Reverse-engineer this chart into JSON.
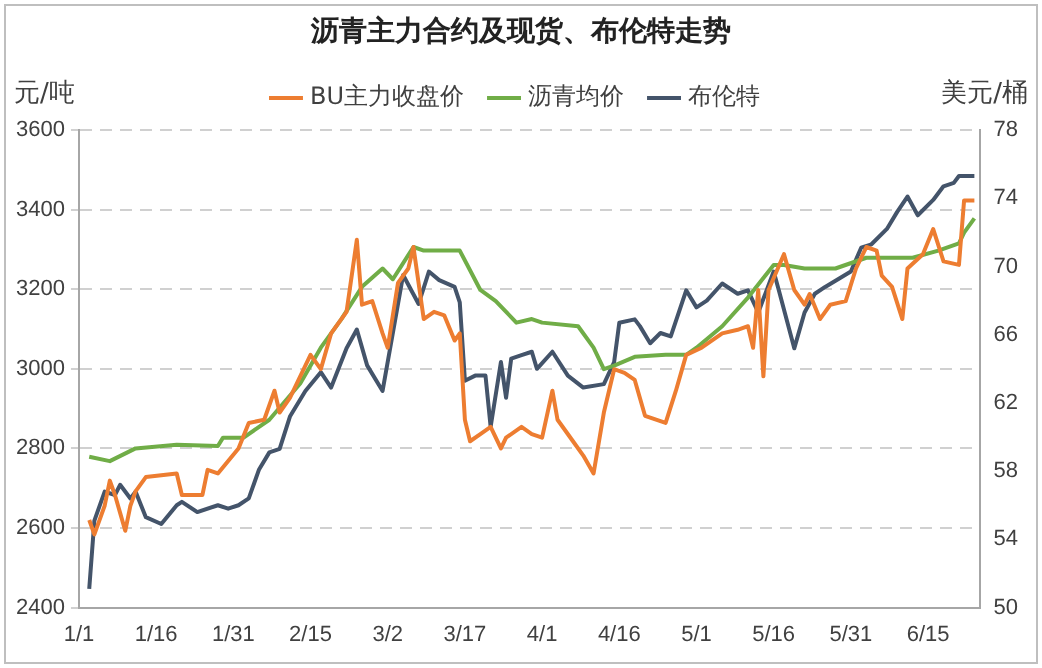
{
  "chart_data": {
    "type": "line",
    "title": "沥青主力合约及现货、布伦特走势",
    "ylabel": "元/吨",
    "y2label": "美元/桶",
    "xlim": [
      "--01-01",
      "--06-25"
    ],
    "xticks": [
      {
        "value": "--01-01",
        "label": "1/1"
      },
      {
        "value": "--01-16",
        "label": "1/16"
      },
      {
        "value": "--01-31",
        "label": "1/31"
      },
      {
        "value": "--02-15",
        "label": "2/15"
      },
      {
        "value": "--03-02",
        "label": "3/2"
      },
      {
        "value": "--03-17",
        "label": "3/17"
      },
      {
        "value": "--04-01",
        "label": "4/1"
      },
      {
        "value": "--04-16",
        "label": "4/16"
      },
      {
        "value": "--05-01",
        "label": "5/1"
      },
      {
        "value": "--05-16",
        "label": "5/16"
      },
      {
        "value": "--05-31",
        "label": "5/31"
      },
      {
        "value": "--06-15",
        "label": "6/15"
      }
    ],
    "ylim": [
      2400,
      3600
    ],
    "yticks": [
      2400,
      2600,
      2800,
      3000,
      3200,
      3400,
      3600
    ],
    "y2lim": [
      50,
      78
    ],
    "y2ticks": [
      50,
      54,
      58,
      62,
      66,
      70,
      74,
      78
    ],
    "grid": "y",
    "legend": "top",
    "marker": "none",
    "line_style": "solid",
    "series": [
      {
        "name": "BU主力收盘价",
        "color": "#ed7d31",
        "x": [
          "--01-03",
          "--01-04",
          "--01-06",
          "--01-07",
          "--01-08",
          "--01-09",
          "--01-10",
          "--01-11",
          "--01-12",
          "--01-14",
          "--01-20",
          "--01-21",
          "--01-25",
          "--01-26",
          "--01-28",
          "--02-01",
          "--02-03",
          "--02-06",
          "--02-08",
          "--02-09",
          "--02-11",
          "--02-15",
          "--02-17",
          "--02-19",
          "--02-22",
          "--02-24",
          "--02-25",
          "--02-27",
          "--03-01",
          "--03-02",
          "--03-04",
          "--03-06",
          "--03-07",
          "--03-09",
          "--03-11",
          "--03-13",
          "--03-15",
          "--03-16",
          "--03-17",
          "--03-18",
          "--03-20",
          "--03-22",
          "--03-24",
          "--03-25",
          "--03-28",
          "--03-30",
          "--04-01",
          "--04-03",
          "--04-04",
          "--04-07",
          "--04-09",
          "--04-11",
          "--04-13",
          "--04-15",
          "--04-17",
          "--04-19",
          "--04-21",
          "--04-25",
          "--04-27",
          "--04-29",
          "--05-02",
          "--05-06",
          "--05-09",
          "--05-11",
          "--05-12",
          "--05-13",
          "--05-14",
          "--05-15",
          "--05-18",
          "--05-20",
          "--05-22",
          "--05-23",
          "--05-25",
          "--05-27",
          "--05-30",
          "--06-01",
          "--06-03",
          "--06-05",
          "--06-06",
          "--06-08",
          "--06-10",
          "--06-11",
          "--06-14",
          "--06-16",
          "--06-18",
          "--06-21",
          "--06-22",
          "--06-24"
        ],
        "values": [
          2620,
          2584,
          2656,
          2719,
          2683,
          2638,
          2593,
          2656,
          2692,
          2728,
          2737,
          2683,
          2683,
          2746,
          2737,
          2800,
          2864,
          2872,
          2945,
          2890,
          2927,
          3035,
          2999,
          3089,
          3143,
          3324,
          3161,
          3170,
          3089,
          3053,
          3216,
          3252,
          3306,
          3125,
          3143,
          3134,
          3071,
          3089,
          2872,
          2818,
          2836,
          2854,
          2800,
          2827,
          2854,
          2836,
          2827,
          2945,
          2872,
          2818,
          2782,
          2737,
          2890,
          2999,
          2990,
          2972,
          2882,
          2864,
          2945,
          3035,
          3053,
          3089,
          3098,
          3107,
          3053,
          3198,
          2981,
          3198,
          3288,
          3198,
          3161,
          3188,
          3125,
          3161,
          3170,
          3252,
          3306,
          3297,
          3234,
          3206,
          3125,
          3252,
          3288,
          3351,
          3270,
          3261,
          3423,
          3423
        ]
      },
      {
        "name": "沥青均价",
        "color": "#70ad47",
        "x": [
          "--01-03",
          "--01-07",
          "--01-12",
          "--01-20",
          "--01-28",
          "--01-29",
          "--02-02",
          "--02-07",
          "--02-13",
          "--02-17",
          "--02-21",
          "--02-25",
          "--03-01",
          "--03-03",
          "--03-07",
          "--03-09",
          "--03-15",
          "--03-16",
          "--03-20",
          "--03-23",
          "--03-27",
          "--03-30",
          "--04-01",
          "--04-08",
          "--04-11",
          "--04-13",
          "--04-15",
          "--04-19",
          "--04-25",
          "--04-29",
          "--05-01",
          "--05-06",
          "--05-11",
          "--05-16",
          "--05-18",
          "--05-22",
          "--05-28",
          "--06-03",
          "--06-12",
          "--06-17",
          "--06-21",
          "--06-22",
          "--06-24"
        ],
        "values": [
          2779,
          2768,
          2800,
          2809,
          2806,
          2827,
          2827,
          2872,
          2963,
          3053,
          3125,
          3206,
          3252,
          3225,
          3306,
          3297,
          3297,
          3297,
          3198,
          3170,
          3116,
          3125,
          3116,
          3107,
          3053,
          2999,
          3008,
          3030,
          3035,
          3035,
          3053,
          3107,
          3179,
          3261,
          3261,
          3252,
          3252,
          3279,
          3279,
          3297,
          3315,
          3342,
          3378
        ]
      },
      {
        "name": "布伦特",
        "color": "#44546a",
        "axis": "y2",
        "x": [
          "--01-03",
          "--01-04",
          "--01-06",
          "--01-08",
          "--01-09",
          "--01-11",
          "--01-12",
          "--01-14",
          "--01-17",
          "--01-20",
          "--01-21",
          "--01-24",
          "--01-28",
          "--01-30",
          "--02-01",
          "--02-03",
          "--02-05",
          "--02-07",
          "--02-09",
          "--02-11",
          "--02-14",
          "--02-17",
          "--02-19",
          "--02-22",
          "--02-24",
          "--02-26",
          "--03-01",
          "--03-05",
          "--03-08",
          "--03-10",
          "--03-12",
          "--03-15",
          "--03-16",
          "--03-17",
          "--03-19",
          "--03-21",
          "--03-22",
          "--03-24",
          "--03-25",
          "--03-26",
          "--03-28",
          "--03-30",
          "--03-31",
          "--04-03",
          "--04-06",
          "--04-09",
          "--04-13",
          "--04-15",
          "--04-16",
          "--04-19",
          "--04-20",
          "--04-22",
          "--04-24",
          "--04-26",
          "--04-29",
          "--05-01",
          "--05-03",
          "--05-06",
          "--05-09",
          "--05-11",
          "--05-13",
          "--05-16",
          "--05-17",
          "--05-20",
          "--05-22",
          "--05-24",
          "--05-26",
          "--05-31",
          "--06-02",
          "--06-04",
          "--06-07",
          "--06-09",
          "--06-11",
          "--06-13",
          "--06-16",
          "--06-18",
          "--06-20",
          "--06-21",
          "--06-24"
        ],
        "values": [
          51.1,
          55.1,
          56.8,
          56.6,
          57.2,
          56.4,
          56.8,
          55.3,
          54.9,
          56.0,
          56.2,
          55.6,
          56.0,
          55.8,
          56.0,
          56.4,
          58.1,
          59.1,
          59.3,
          61.2,
          62.7,
          63.8,
          62.9,
          65.2,
          66.3,
          64.2,
          62.7,
          69.5,
          67.8,
          69.7,
          69.2,
          68.8,
          67.9,
          63.3,
          63.6,
          63.6,
          60.6,
          64.4,
          62.3,
          64.6,
          64.8,
          65.0,
          64.0,
          65.0,
          63.6,
          62.9,
          63.1,
          64.4,
          66.7,
          66.9,
          66.5,
          65.5,
          66.1,
          65.9,
          68.6,
          67.6,
          68.0,
          69.0,
          68.4,
          68.6,
          67.3,
          69.7,
          68.6,
          65.2,
          67.3,
          68.4,
          68.8,
          69.7,
          71.1,
          71.3,
          72.2,
          73.2,
          74.1,
          73.0,
          73.9,
          74.7,
          74.9,
          75.3,
          75.3
        ]
      }
    ]
  }
}
